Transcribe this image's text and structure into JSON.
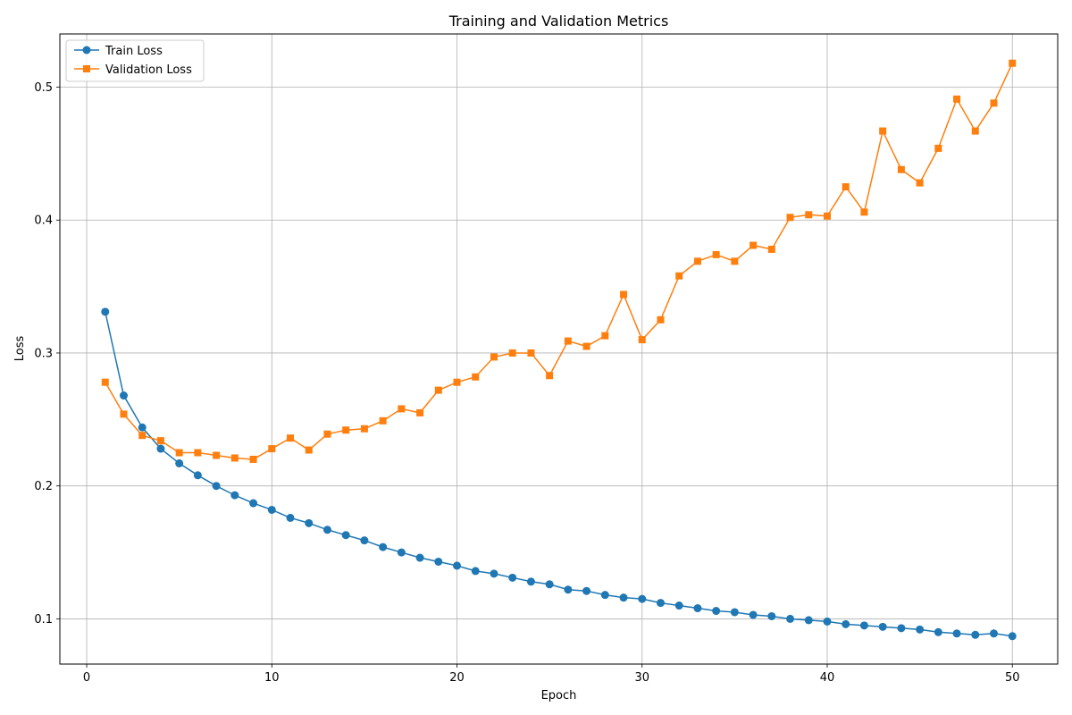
{
  "chart_data": {
    "type": "line",
    "title": "Training and Validation Metrics",
    "xlabel": "Epoch",
    "ylabel": "Loss",
    "xlim": [
      -1.45,
      52.45
    ],
    "ylim": [
      0.066,
      0.54
    ],
    "xticks": [
      0,
      10,
      20,
      30,
      40,
      50
    ],
    "yticks": [
      0.1,
      0.2,
      0.3,
      0.4,
      0.5
    ],
    "xtick_labels": [
      "0",
      "10",
      "20",
      "30",
      "40",
      "50"
    ],
    "ytick_labels": [
      "0.1",
      "0.2",
      "0.3",
      "0.4",
      "0.5"
    ],
    "grid": true,
    "legend_position": "top-left",
    "x": [
      1,
      2,
      3,
      4,
      5,
      6,
      7,
      8,
      9,
      10,
      11,
      12,
      13,
      14,
      15,
      16,
      17,
      18,
      19,
      20,
      21,
      22,
      23,
      24,
      25,
      26,
      27,
      28,
      29,
      30,
      31,
      32,
      33,
      34,
      35,
      36,
      37,
      38,
      39,
      40,
      41,
      42,
      43,
      44,
      45,
      46,
      47,
      48,
      49,
      50
    ],
    "series": [
      {
        "name": "Train Loss",
        "color": "#1f77b4",
        "marker": "circle",
        "values": [
          0.331,
          0.268,
          0.244,
          0.228,
          0.217,
          0.208,
          0.2,
          0.193,
          0.187,
          0.182,
          0.176,
          0.172,
          0.167,
          0.163,
          0.159,
          0.154,
          0.15,
          0.146,
          0.143,
          0.14,
          0.136,
          0.134,
          0.131,
          0.128,
          0.126,
          0.122,
          0.121,
          0.118,
          0.116,
          0.115,
          0.112,
          0.11,
          0.108,
          0.106,
          0.105,
          0.103,
          0.102,
          0.1,
          0.099,
          0.098,
          0.096,
          0.095,
          0.094,
          0.093,
          0.092,
          0.09,
          0.089,
          0.088,
          0.089,
          0.087
        ]
      },
      {
        "name": "Validation Loss",
        "color": "#ff7f0e",
        "marker": "square",
        "values": [
          0.278,
          0.254,
          0.238,
          0.234,
          0.225,
          0.225,
          0.223,
          0.221,
          0.22,
          0.228,
          0.236,
          0.227,
          0.239,
          0.242,
          0.243,
          0.249,
          0.258,
          0.255,
          0.272,
          0.278,
          0.282,
          0.297,
          0.3,
          0.3,
          0.283,
          0.309,
          0.305,
          0.313,
          0.344,
          0.31,
          0.325,
          0.358,
          0.369,
          0.374,
          0.369,
          0.381,
          0.378,
          0.402,
          0.404,
          0.403,
          0.425,
          0.406,
          0.467,
          0.438,
          0.428,
          0.454,
          0.491,
          0.467,
          0.488,
          0.518
        ]
      }
    ]
  }
}
